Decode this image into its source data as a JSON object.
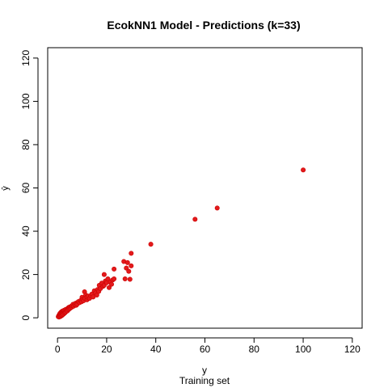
{
  "chart_data": {
    "type": "scatter",
    "title": "EcokNN1 Model - Predictions (k=33)",
    "xlabel": "y",
    "subtitle": "Training set",
    "ylabel": "ŷ",
    "xlim": [
      -4,
      124
    ],
    "ylim": [
      -4.8,
      124.8
    ],
    "x_ticks": [
      0,
      20,
      40,
      60,
      80,
      100,
      120
    ],
    "y_ticks": [
      0,
      20,
      40,
      60,
      80,
      100,
      120
    ],
    "point_color": "#e31a1c",
    "point_stroke": "#cc0000",
    "series": [
      {
        "name": "predictions",
        "points": [
          [
            0.3,
            0.5
          ],
          [
            0.5,
            1.0
          ],
          [
            0.6,
            0.3
          ],
          [
            0.8,
            1.6
          ],
          [
            0.9,
            0.8
          ],
          [
            1.0,
            2.0
          ],
          [
            1.1,
            1.2
          ],
          [
            1.2,
            0.6
          ],
          [
            1.3,
            2.4
          ],
          [
            1.4,
            1.5
          ],
          [
            1.5,
            0.9
          ],
          [
            1.6,
            2.8
          ],
          [
            1.7,
            1.9
          ],
          [
            1.8,
            1.1
          ],
          [
            1.9,
            3.0
          ],
          [
            2.0,
            2.2
          ],
          [
            2.1,
            1.4
          ],
          [
            2.2,
            3.2
          ],
          [
            2.3,
            2.5
          ],
          [
            2.4,
            1.7
          ],
          [
            2.5,
            2.9
          ],
          [
            2.6,
            3.4
          ],
          [
            2.8,
            2.1
          ],
          [
            3.0,
            3.0
          ],
          [
            3.1,
            2.4
          ],
          [
            3.2,
            3.8
          ],
          [
            3.4,
            2.8
          ],
          [
            3.6,
            3.5
          ],
          [
            3.8,
            4.0
          ],
          [
            4.0,
            3.2
          ],
          [
            4.2,
            4.4
          ],
          [
            4.4,
            3.7
          ],
          [
            4.6,
            4.8
          ],
          [
            4.8,
            4.1
          ],
          [
            5.0,
            5.0
          ],
          [
            5.2,
            4.5
          ],
          [
            5.5,
            5.3
          ],
          [
            5.8,
            4.9
          ],
          [
            6.0,
            5.6
          ],
          [
            6.3,
            6.2
          ],
          [
            6.6,
            5.4
          ],
          [
            7.0,
            6.0
          ],
          [
            7.3,
            6.7
          ],
          [
            7.6,
            5.8
          ],
          [
            8.0,
            7.0
          ],
          [
            8.0,
            6.3
          ],
          [
            8.5,
            7.5
          ],
          [
            9.0,
            7.0
          ],
          [
            9.4,
            8.0
          ],
          [
            9.8,
            7.4
          ],
          [
            10.0,
            9.5
          ],
          [
            10.3,
            8.5
          ],
          [
            10.6,
            7.9
          ],
          [
            11.0,
            12.0
          ],
          [
            11.2,
            9.0
          ],
          [
            11.5,
            10.5
          ],
          [
            12.0,
            8.3
          ],
          [
            12.0,
            9.6
          ],
          [
            12.5,
            10.0
          ],
          [
            13.0,
            9.0
          ],
          [
            13.5,
            10.2
          ],
          [
            14.0,
            11.0
          ],
          [
            14.5,
            9.6
          ],
          [
            15.0,
            12.5
          ],
          [
            15.5,
            11.5
          ],
          [
            16.0,
            10.5
          ],
          [
            16.3,
            13.0
          ],
          [
            16.8,
            12.2
          ],
          [
            17.0,
            15.0
          ],
          [
            17.5,
            13.5
          ],
          [
            18.0,
            16.0
          ],
          [
            18.5,
            14.5
          ],
          [
            19.0,
            20.0
          ],
          [
            19.0,
            15.0
          ],
          [
            19.5,
            17.0
          ],
          [
            20.0,
            16.2
          ],
          [
            20.5,
            18.0
          ],
          [
            21.0,
            14.0
          ],
          [
            21.5,
            16.5
          ],
          [
            22.0,
            15.5
          ],
          [
            22.5,
            17.5
          ],
          [
            23.0,
            22.5
          ],
          [
            23.0,
            18.0
          ],
          [
            27.0,
            26.0
          ],
          [
            27.5,
            18.0
          ],
          [
            28.0,
            23.0
          ],
          [
            28.5,
            25.5
          ],
          [
            29.0,
            21.5
          ],
          [
            29.5,
            17.8
          ],
          [
            30.0,
            29.8
          ],
          [
            30.0,
            24.0
          ],
          [
            38.0,
            34.0
          ],
          [
            56.0,
            45.5
          ],
          [
            65.0,
            50.7
          ],
          [
            100.0,
            68.3
          ]
        ]
      }
    ]
  }
}
